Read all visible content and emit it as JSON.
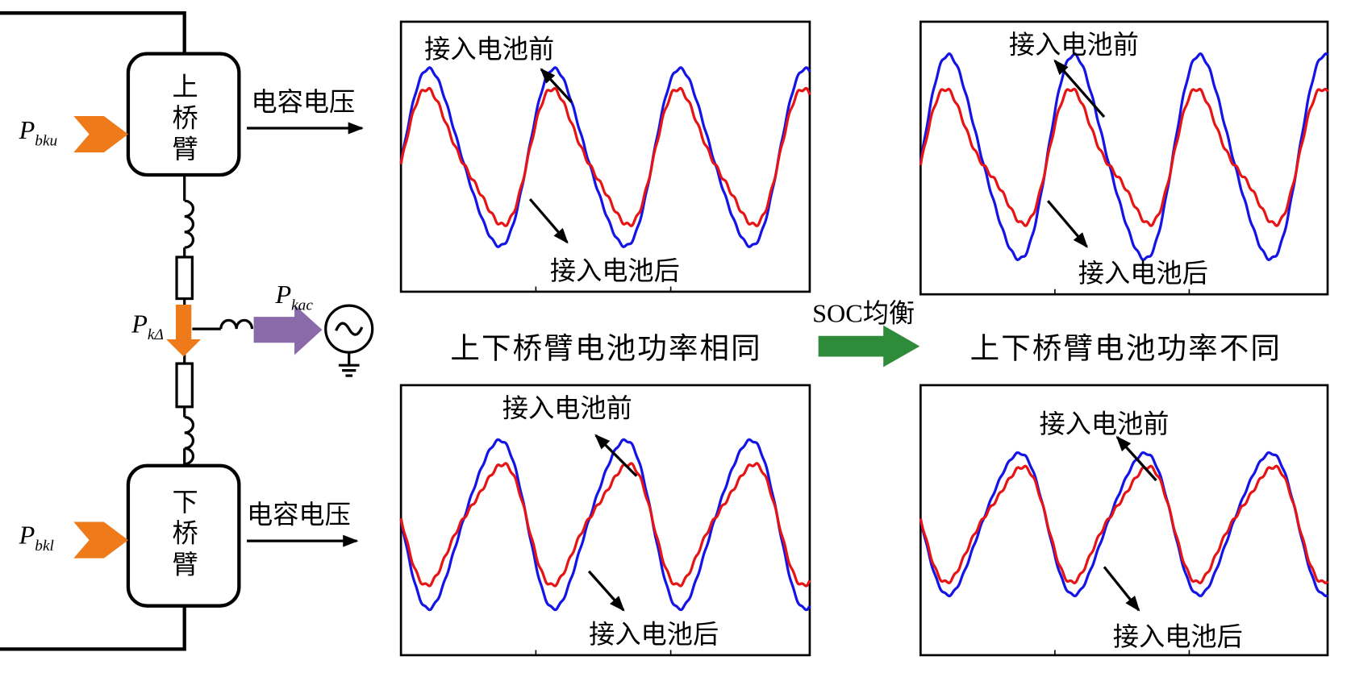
{
  "circuit": {
    "upper_arm": "上桥臂",
    "lower_arm": "下桥臂",
    "upper_output": "电容电压",
    "lower_output": "电容电压",
    "p_bku": {
      "symbol": "P",
      "subscript": "bku"
    },
    "p_bkl": {
      "symbol": "P",
      "subscript": "bkl"
    },
    "p_kdelta": {
      "symbol": "P",
      "subscript": "kΔ"
    },
    "p_kac": {
      "symbol": "P",
      "subscript": "kac"
    }
  },
  "panels": [
    {
      "before": "接入电池前",
      "after": "接入电池后"
    },
    {
      "before": "接入电池前",
      "after": "接入电池后"
    },
    {
      "before": "接入电池前",
      "after": "接入电池后"
    },
    {
      "before": "接入电池前",
      "after": "接入电池后"
    }
  ],
  "captions": {
    "same": "上下桥臂电池功率相同",
    "different": "上下桥臂电池功率不同"
  },
  "arrow_label": "SOC均衡"
}
